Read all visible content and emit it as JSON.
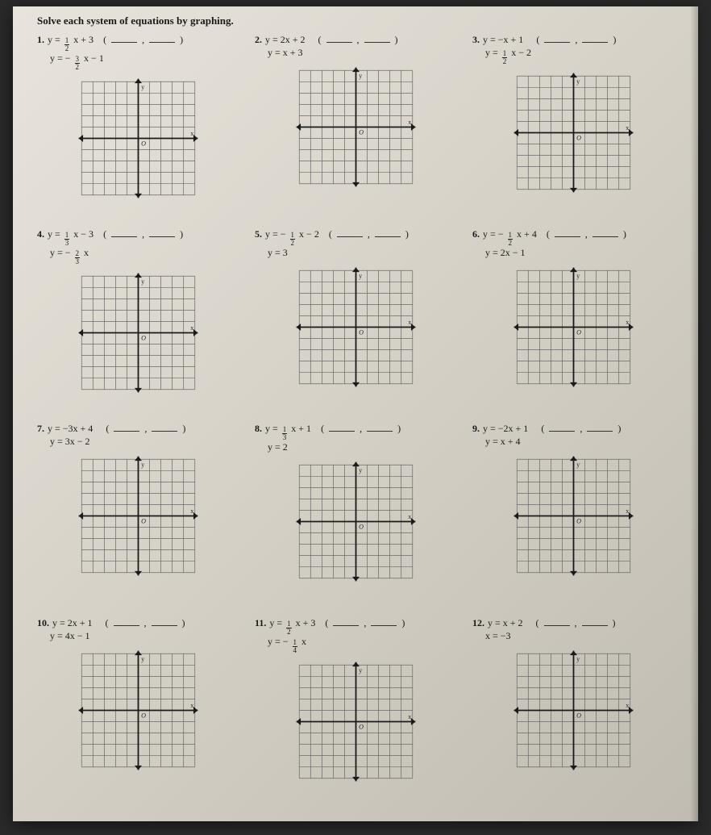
{
  "instruction": "Solve each system of equations by graphing.",
  "graph": {
    "size": 155,
    "cells": 10,
    "grid_color": "#6a6a6a",
    "axis_color": "#1a1a1a",
    "bg": "transparent",
    "x_label": "x",
    "y_label": "y",
    "origin_label": "O"
  },
  "problems": [
    {
      "num": "1.",
      "eq1_pre": "y =",
      "eq1_frac_n": "1",
      "eq1_frac_d": "2",
      "eq1_post": "x + 3",
      "eq2_pre": "y = −",
      "eq2_frac_n": "3",
      "eq2_frac_d": "2",
      "eq2_post": "x − 1"
    },
    {
      "num": "2.",
      "eq1_pre": "y = 2x + 2",
      "eq1_frac_n": "",
      "eq1_frac_d": "",
      "eq1_post": "",
      "eq2_pre": "y = x + 3",
      "eq2_frac_n": "",
      "eq2_frac_d": "",
      "eq2_post": ""
    },
    {
      "num": "3.",
      "eq1_pre": "y = −x + 1",
      "eq1_frac_n": "",
      "eq1_frac_d": "",
      "eq1_post": "",
      "eq2_pre": "y =",
      "eq2_frac_n": "1",
      "eq2_frac_d": "2",
      "eq2_post": "x − 2"
    },
    {
      "num": "4.",
      "eq1_pre": "y =",
      "eq1_frac_n": "1",
      "eq1_frac_d": "3",
      "eq1_post": "x − 3",
      "eq2_pre": "y = −",
      "eq2_frac_n": "2",
      "eq2_frac_d": "3",
      "eq2_post": "x"
    },
    {
      "num": "5.",
      "eq1_pre": "y = −",
      "eq1_frac_n": "1",
      "eq1_frac_d": "2",
      "eq1_post": "x − 2",
      "eq2_pre": "y = 3",
      "eq2_frac_n": "",
      "eq2_frac_d": "",
      "eq2_post": ""
    },
    {
      "num": "6.",
      "eq1_pre": "y = −",
      "eq1_frac_n": "1",
      "eq1_frac_d": "2",
      "eq1_post": "x + 4",
      "eq2_pre": "y = 2x − 1",
      "eq2_frac_n": "",
      "eq2_frac_d": "",
      "eq2_post": ""
    },
    {
      "num": "7.",
      "eq1_pre": "y = −3x + 4",
      "eq1_frac_n": "",
      "eq1_frac_d": "",
      "eq1_post": "",
      "eq2_pre": "y = 3x − 2",
      "eq2_frac_n": "",
      "eq2_frac_d": "",
      "eq2_post": ""
    },
    {
      "num": "8.",
      "eq1_pre": "y =",
      "eq1_frac_n": "1",
      "eq1_frac_d": "3",
      "eq1_post": "x + 1",
      "eq2_pre": "y = 2",
      "eq2_frac_n": "",
      "eq2_frac_d": "",
      "eq2_post": ""
    },
    {
      "num": "9.",
      "eq1_pre": "y = −2x + 1",
      "eq1_frac_n": "",
      "eq1_frac_d": "",
      "eq1_post": "",
      "eq2_pre": "y = x + 4",
      "eq2_frac_n": "",
      "eq2_frac_d": "",
      "eq2_post": ""
    },
    {
      "num": "10.",
      "eq1_pre": "y = 2x + 1",
      "eq1_frac_n": "",
      "eq1_frac_d": "",
      "eq1_post": "",
      "eq2_pre": "y = 4x − 1",
      "eq2_frac_n": "",
      "eq2_frac_d": "",
      "eq2_post": ""
    },
    {
      "num": "11.",
      "eq1_pre": "y =",
      "eq1_frac_n": "1",
      "eq1_frac_d": "2",
      "eq1_post": "x + 3",
      "eq2_pre": "y = −",
      "eq2_frac_n": "1",
      "eq2_frac_d": "4",
      "eq2_post": "x"
    },
    {
      "num": "12.",
      "eq1_pre": "y = x + 2",
      "eq1_frac_n": "",
      "eq1_frac_d": "",
      "eq1_post": "",
      "eq2_pre": "x = −3",
      "eq2_frac_n": "",
      "eq2_frac_d": "",
      "eq2_post": ""
    }
  ]
}
